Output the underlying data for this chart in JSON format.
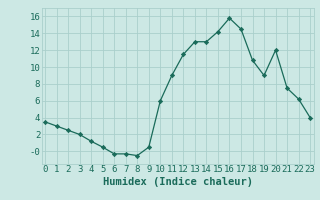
{
  "x": [
    0,
    1,
    2,
    3,
    4,
    5,
    6,
    7,
    8,
    9,
    10,
    11,
    12,
    13,
    14,
    15,
    16,
    17,
    18,
    19,
    20,
    21,
    22,
    23
  ],
  "y": [
    3.5,
    3.0,
    2.5,
    2.0,
    1.2,
    0.5,
    -0.3,
    -0.3,
    -0.5,
    0.5,
    6.0,
    9.0,
    11.5,
    13.0,
    13.0,
    14.2,
    15.8,
    14.5,
    10.8,
    9.0,
    12.0,
    7.5,
    6.2,
    4.0
  ],
  "x_ticks": [
    0,
    1,
    2,
    3,
    4,
    5,
    6,
    7,
    8,
    9,
    10,
    11,
    12,
    13,
    14,
    15,
    16,
    17,
    18,
    19,
    20,
    21,
    22,
    23
  ],
  "y_ticks": [
    0,
    2,
    4,
    6,
    8,
    10,
    12,
    14,
    16
  ],
  "xlim": [
    -0.3,
    23.3
  ],
  "ylim": [
    -1.5,
    17.0
  ],
  "xlabel": "Humidex (Indice chaleur)",
  "line_color": "#1a6b5a",
  "marker": "D",
  "marker_size": 2.2,
  "bg_color": "#cce8e4",
  "grid_color": "#aacfcc",
  "label_color": "#1a6b5a",
  "xlabel_fontsize": 7.5,
  "tick_fontsize": 6.5
}
